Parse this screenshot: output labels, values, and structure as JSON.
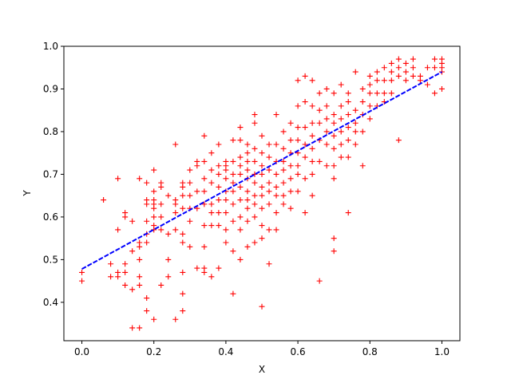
{
  "chart_data": {
    "type": "scatter",
    "xlabel": "X",
    "ylabel": "Y",
    "xlim": [
      -0.05,
      1.05
    ],
    "ylim": [
      0.31,
      1.0
    ],
    "xticks": [
      "0.0",
      "0.2",
      "0.4",
      "0.6",
      "0.8",
      "1.0"
    ],
    "yticks": [
      "0.4",
      "0.5",
      "0.6",
      "0.7",
      "0.8",
      "0.9",
      "1.0"
    ],
    "grid": false,
    "colors": {
      "points": "#ff0000",
      "fit_line": "#0000ff"
    },
    "series": [
      {
        "marker": "plus",
        "points": [
          [
            0.0,
            0.47
          ],
          [
            0.0,
            0.45
          ],
          [
            0.06,
            0.64
          ],
          [
            0.08,
            0.49
          ],
          [
            0.08,
            0.46
          ],
          [
            0.1,
            0.69
          ],
          [
            0.1,
            0.57
          ],
          [
            0.1,
            0.47
          ],
          [
            0.1,
            0.46
          ],
          [
            0.12,
            0.61
          ],
          [
            0.12,
            0.6
          ],
          [
            0.12,
            0.49
          ],
          [
            0.12,
            0.47
          ],
          [
            0.12,
            0.44
          ],
          [
            0.14,
            0.59
          ],
          [
            0.14,
            0.52
          ],
          [
            0.14,
            0.43
          ],
          [
            0.14,
            0.34
          ],
          [
            0.16,
            0.69
          ],
          [
            0.16,
            0.54
          ],
          [
            0.16,
            0.53
          ],
          [
            0.16,
            0.5
          ],
          [
            0.16,
            0.46
          ],
          [
            0.16,
            0.44
          ],
          [
            0.16,
            0.34
          ],
          [
            0.18,
            0.68
          ],
          [
            0.18,
            0.64
          ],
          [
            0.18,
            0.63
          ],
          [
            0.18,
            0.59
          ],
          [
            0.18,
            0.56
          ],
          [
            0.18,
            0.54
          ],
          [
            0.18,
            0.41
          ],
          [
            0.18,
            0.38
          ],
          [
            0.2,
            0.71
          ],
          [
            0.2,
            0.66
          ],
          [
            0.2,
            0.64
          ],
          [
            0.2,
            0.63
          ],
          [
            0.2,
            0.62
          ],
          [
            0.2,
            0.6
          ],
          [
            0.2,
            0.58
          ],
          [
            0.2,
            0.57
          ],
          [
            0.2,
            0.36
          ],
          [
            0.22,
            0.68
          ],
          [
            0.22,
            0.67
          ],
          [
            0.22,
            0.63
          ],
          [
            0.22,
            0.6
          ],
          [
            0.22,
            0.57
          ],
          [
            0.22,
            0.44
          ],
          [
            0.24,
            0.65
          ],
          [
            0.24,
            0.56
          ],
          [
            0.24,
            0.5
          ],
          [
            0.24,
            0.46
          ],
          [
            0.26,
            0.77
          ],
          [
            0.26,
            0.64
          ],
          [
            0.26,
            0.63
          ],
          [
            0.26,
            0.61
          ],
          [
            0.26,
            0.57
          ],
          [
            0.26,
            0.36
          ],
          [
            0.28,
            0.68
          ],
          [
            0.28,
            0.67
          ],
          [
            0.28,
            0.65
          ],
          [
            0.28,
            0.62
          ],
          [
            0.28,
            0.56
          ],
          [
            0.28,
            0.54
          ],
          [
            0.28,
            0.47
          ],
          [
            0.28,
            0.42
          ],
          [
            0.28,
            0.38
          ],
          [
            0.3,
            0.71
          ],
          [
            0.3,
            0.68
          ],
          [
            0.3,
            0.65
          ],
          [
            0.3,
            0.62
          ],
          [
            0.3,
            0.59
          ],
          [
            0.3,
            0.53
          ],
          [
            0.32,
            0.73
          ],
          [
            0.32,
            0.72
          ],
          [
            0.32,
            0.66
          ],
          [
            0.32,
            0.62
          ],
          [
            0.32,
            0.48
          ],
          [
            0.34,
            0.79
          ],
          [
            0.34,
            0.73
          ],
          [
            0.34,
            0.69
          ],
          [
            0.34,
            0.66
          ],
          [
            0.34,
            0.63
          ],
          [
            0.34,
            0.58
          ],
          [
            0.34,
            0.53
          ],
          [
            0.34,
            0.48
          ],
          [
            0.34,
            0.47
          ],
          [
            0.36,
            0.75
          ],
          [
            0.36,
            0.71
          ],
          [
            0.36,
            0.68
          ],
          [
            0.36,
            0.63
          ],
          [
            0.36,
            0.61
          ],
          [
            0.36,
            0.58
          ],
          [
            0.36,
            0.46
          ],
          [
            0.38,
            0.77
          ],
          [
            0.38,
            0.72
          ],
          [
            0.38,
            0.7
          ],
          [
            0.38,
            0.67
          ],
          [
            0.38,
            0.64
          ],
          [
            0.38,
            0.61
          ],
          [
            0.38,
            0.58
          ],
          [
            0.38,
            0.48
          ],
          [
            0.4,
            0.73
          ],
          [
            0.4,
            0.72
          ],
          [
            0.4,
            0.71
          ],
          [
            0.4,
            0.69
          ],
          [
            0.4,
            0.66
          ],
          [
            0.4,
            0.64
          ],
          [
            0.4,
            0.61
          ],
          [
            0.4,
            0.57
          ],
          [
            0.4,
            0.54
          ],
          [
            0.42,
            0.78
          ],
          [
            0.42,
            0.73
          ],
          [
            0.42,
            0.7
          ],
          [
            0.42,
            0.68
          ],
          [
            0.42,
            0.66
          ],
          [
            0.42,
            0.63
          ],
          [
            0.42,
            0.59
          ],
          [
            0.42,
            0.52
          ],
          [
            0.42,
            0.42
          ],
          [
            0.44,
            0.81
          ],
          [
            0.44,
            0.78
          ],
          [
            0.44,
            0.74
          ],
          [
            0.44,
            0.72
          ],
          [
            0.44,
            0.7
          ],
          [
            0.44,
            0.67
          ],
          [
            0.44,
            0.64
          ],
          [
            0.44,
            0.6
          ],
          [
            0.44,
            0.57
          ],
          [
            0.44,
            0.5
          ],
          [
            0.46,
            0.77
          ],
          [
            0.46,
            0.75
          ],
          [
            0.46,
            0.73
          ],
          [
            0.46,
            0.71
          ],
          [
            0.46,
            0.69
          ],
          [
            0.46,
            0.66
          ],
          [
            0.46,
            0.64
          ],
          [
            0.46,
            0.62
          ],
          [
            0.46,
            0.59
          ],
          [
            0.46,
            0.53
          ],
          [
            0.48,
            0.84
          ],
          [
            0.48,
            0.82
          ],
          [
            0.48,
            0.76
          ],
          [
            0.48,
            0.73
          ],
          [
            0.48,
            0.7
          ],
          [
            0.48,
            0.68
          ],
          [
            0.48,
            0.65
          ],
          [
            0.48,
            0.63
          ],
          [
            0.48,
            0.6
          ],
          [
            0.48,
            0.54
          ],
          [
            0.5,
            0.79
          ],
          [
            0.5,
            0.75
          ],
          [
            0.5,
            0.72
          ],
          [
            0.5,
            0.7
          ],
          [
            0.5,
            0.67
          ],
          [
            0.5,
            0.65
          ],
          [
            0.5,
            0.62
          ],
          [
            0.5,
            0.58
          ],
          [
            0.5,
            0.55
          ],
          [
            0.5,
            0.39
          ],
          [
            0.52,
            0.77
          ],
          [
            0.52,
            0.74
          ],
          [
            0.52,
            0.71
          ],
          [
            0.52,
            0.68
          ],
          [
            0.52,
            0.66
          ],
          [
            0.52,
            0.63
          ],
          [
            0.52,
            0.57
          ],
          [
            0.52,
            0.49
          ],
          [
            0.54,
            0.84
          ],
          [
            0.54,
            0.77
          ],
          [
            0.54,
            0.73
          ],
          [
            0.54,
            0.7
          ],
          [
            0.54,
            0.67
          ],
          [
            0.54,
            0.65
          ],
          [
            0.54,
            0.61
          ],
          [
            0.54,
            0.57
          ],
          [
            0.56,
            0.8
          ],
          [
            0.56,
            0.76
          ],
          [
            0.56,
            0.73
          ],
          [
            0.56,
            0.71
          ],
          [
            0.56,
            0.68
          ],
          [
            0.56,
            0.65
          ],
          [
            0.56,
            0.63
          ],
          [
            0.58,
            0.82
          ],
          [
            0.58,
            0.78
          ],
          [
            0.58,
            0.75
          ],
          [
            0.58,
            0.72
          ],
          [
            0.58,
            0.69
          ],
          [
            0.58,
            0.66
          ],
          [
            0.58,
            0.62
          ],
          [
            0.6,
            0.92
          ],
          [
            0.6,
            0.86
          ],
          [
            0.6,
            0.81
          ],
          [
            0.6,
            0.78
          ],
          [
            0.6,
            0.75
          ],
          [
            0.6,
            0.72
          ],
          [
            0.6,
            0.7
          ],
          [
            0.6,
            0.66
          ],
          [
            0.62,
            0.93
          ],
          [
            0.62,
            0.87
          ],
          [
            0.62,
            0.81
          ],
          [
            0.62,
            0.77
          ],
          [
            0.62,
            0.74
          ],
          [
            0.62,
            0.69
          ],
          [
            0.62,
            0.61
          ],
          [
            0.64,
            0.92
          ],
          [
            0.64,
            0.86
          ],
          [
            0.64,
            0.82
          ],
          [
            0.64,
            0.79
          ],
          [
            0.64,
            0.76
          ],
          [
            0.64,
            0.73
          ],
          [
            0.64,
            0.7
          ],
          [
            0.64,
            0.65
          ],
          [
            0.66,
            0.89
          ],
          [
            0.66,
            0.85
          ],
          [
            0.66,
            0.82
          ],
          [
            0.66,
            0.78
          ],
          [
            0.66,
            0.73
          ],
          [
            0.66,
            0.45
          ],
          [
            0.68,
            0.9
          ],
          [
            0.68,
            0.86
          ],
          [
            0.68,
            0.83
          ],
          [
            0.68,
            0.8
          ],
          [
            0.68,
            0.77
          ],
          [
            0.68,
            0.72
          ],
          [
            0.7,
            0.89
          ],
          [
            0.7,
            0.84
          ],
          [
            0.7,
            0.82
          ],
          [
            0.7,
            0.79
          ],
          [
            0.7,
            0.76
          ],
          [
            0.7,
            0.72
          ],
          [
            0.7,
            0.69
          ],
          [
            0.7,
            0.55
          ],
          [
            0.7,
            0.52
          ],
          [
            0.72,
            0.91
          ],
          [
            0.72,
            0.86
          ],
          [
            0.72,
            0.83
          ],
          [
            0.72,
            0.8
          ],
          [
            0.72,
            0.77
          ],
          [
            0.72,
            0.74
          ],
          [
            0.74,
            0.89
          ],
          [
            0.74,
            0.87
          ],
          [
            0.74,
            0.84
          ],
          [
            0.74,
            0.81
          ],
          [
            0.74,
            0.78
          ],
          [
            0.74,
            0.74
          ],
          [
            0.74,
            0.61
          ],
          [
            0.76,
            0.94
          ],
          [
            0.76,
            0.85
          ],
          [
            0.76,
            0.82
          ],
          [
            0.76,
            0.8
          ],
          [
            0.76,
            0.77
          ],
          [
            0.78,
            0.9
          ],
          [
            0.78,
            0.87
          ],
          [
            0.78,
            0.84
          ],
          [
            0.78,
            0.8
          ],
          [
            0.78,
            0.72
          ],
          [
            0.8,
            0.93
          ],
          [
            0.8,
            0.91
          ],
          [
            0.8,
            0.89
          ],
          [
            0.8,
            0.86
          ],
          [
            0.8,
            0.83
          ],
          [
            0.82,
            0.94
          ],
          [
            0.82,
            0.92
          ],
          [
            0.82,
            0.89
          ],
          [
            0.82,
            0.86
          ],
          [
            0.84,
            0.95
          ],
          [
            0.84,
            0.92
          ],
          [
            0.84,
            0.89
          ],
          [
            0.84,
            0.87
          ],
          [
            0.86,
            0.96
          ],
          [
            0.86,
            0.94
          ],
          [
            0.86,
            0.92
          ],
          [
            0.86,
            0.89
          ],
          [
            0.88,
            0.97
          ],
          [
            0.88,
            0.95
          ],
          [
            0.88,
            0.93
          ],
          [
            0.88,
            0.78
          ],
          [
            0.9,
            0.96
          ],
          [
            0.9,
            0.94
          ],
          [
            0.9,
            0.92
          ],
          [
            0.92,
            0.97
          ],
          [
            0.92,
            0.95
          ],
          [
            0.92,
            0.93
          ],
          [
            0.94,
            0.93
          ],
          [
            0.94,
            0.92
          ],
          [
            0.96,
            0.95
          ],
          [
            0.96,
            0.91
          ],
          [
            0.98,
            0.97
          ],
          [
            0.98,
            0.95
          ],
          [
            0.98,
            0.89
          ],
          [
            1.0,
            0.97
          ],
          [
            1.0,
            0.96
          ],
          [
            1.0,
            0.95
          ],
          [
            1.0,
            0.94
          ],
          [
            1.0,
            0.9
          ]
        ]
      },
      {
        "style": "dashed-line",
        "points": [
          [
            0.0,
            0.478
          ],
          [
            1.0,
            0.94
          ]
        ]
      }
    ]
  }
}
